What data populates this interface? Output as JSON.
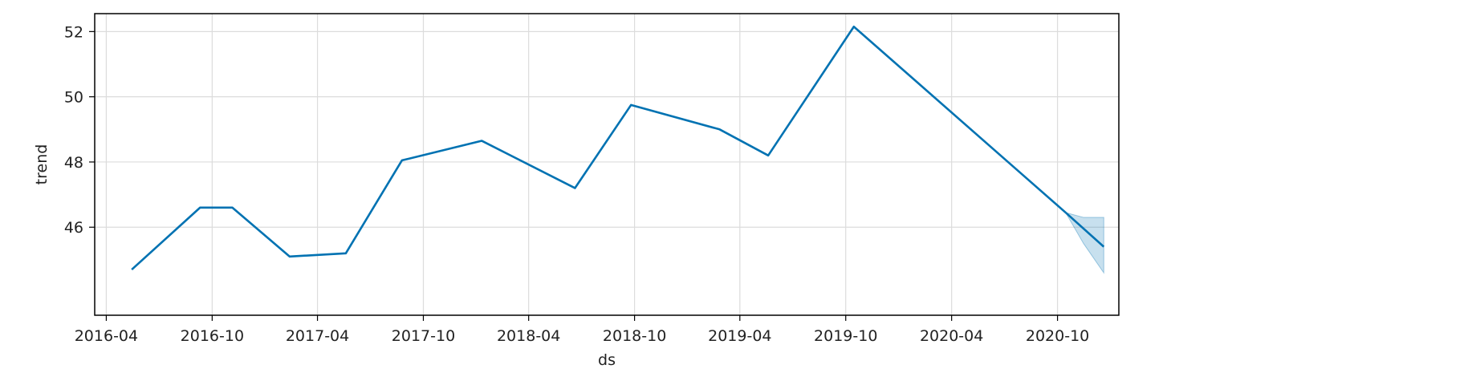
{
  "chart_data": {
    "type": "line",
    "xlabel": "ds",
    "ylabel": "trend",
    "x_ticks": [
      "2016-04",
      "2016-10",
      "2017-04",
      "2017-10",
      "2018-04",
      "2018-10",
      "2019-04",
      "2019-10",
      "2020-04",
      "2020-10"
    ],
    "y_ticks": [
      "46",
      "48",
      "50",
      "52"
    ],
    "xlim": [
      "2016-03-12",
      "2021-01-15"
    ],
    "ylim": [
      43.3,
      52.55
    ],
    "grid": true,
    "line_color": "#0072B2",
    "band_color": "#0072B2",
    "series": [
      {
        "x": [
          "2016-05-15",
          "2016-09-10",
          "2016-11-05",
          "2017-02-12",
          "2017-05-20",
          "2017-08-25",
          "2018-01-10",
          "2018-06-20",
          "2018-09-25",
          "2019-02-25",
          "2019-05-20",
          "2019-10-15",
          "2020-10-15",
          "2020-12-20"
        ],
        "y": [
          44.7,
          46.6,
          46.6,
          45.1,
          45.2,
          48.05,
          48.65,
          47.2,
          49.75,
          49.0,
          48.2,
          52.15,
          46.45,
          45.4
        ]
      }
    ],
    "uncertainty_band": {
      "x": [
        "2020-10-15",
        "2020-11-15",
        "2020-12-20"
      ],
      "upper": [
        46.45,
        46.3,
        46.3
      ],
      "lower": [
        46.45,
        45.5,
        44.6
      ]
    }
  }
}
